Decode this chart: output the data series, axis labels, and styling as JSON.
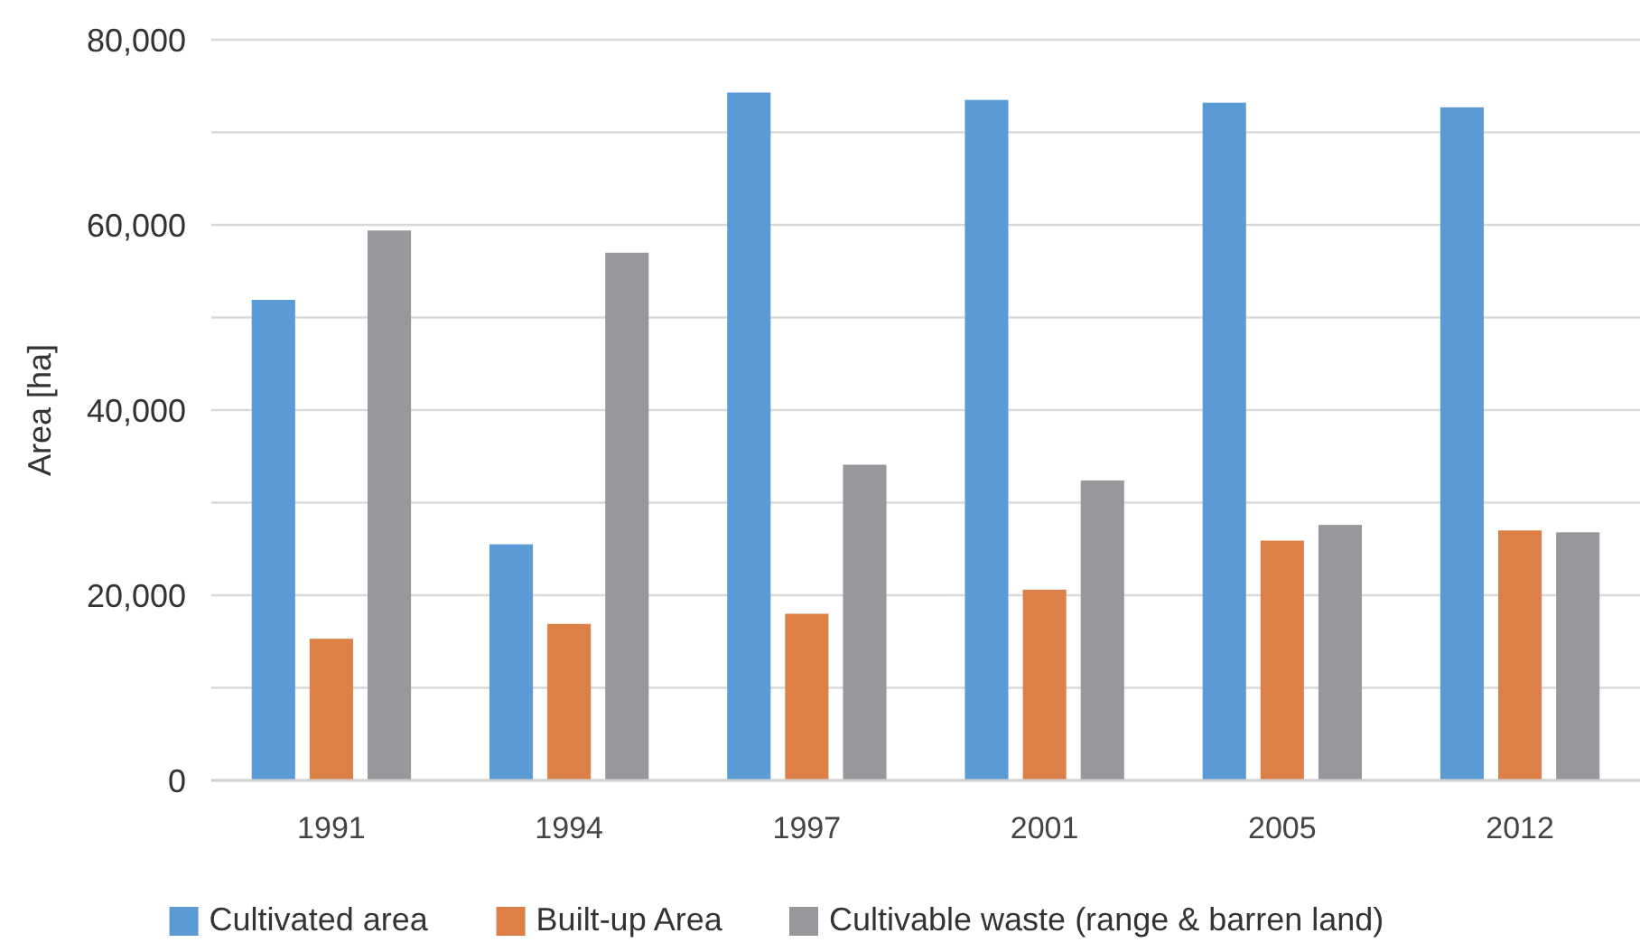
{
  "chart_data": {
    "type": "bar",
    "ylabel": "Area [ha]",
    "categories": [
      "1991",
      "1994",
      "1997",
      "2001",
      "2005",
      "2012"
    ],
    "series": [
      {
        "name": "Cultivated area",
        "color": "#5b9bd5",
        "values": [
          51900,
          25500,
          74300,
          73500,
          73200,
          72700
        ]
      },
      {
        "name": "Built-up Area",
        "color": "#dd8047",
        "values": [
          15300,
          16900,
          18000,
          20600,
          25900,
          27000
        ]
      },
      {
        "name": "Cultivable waste (range & barren land)",
        "color": "#97989c",
        "values": [
          59400,
          57000,
          34100,
          32400,
          27600,
          26800
        ]
      }
    ],
    "ylim": [
      0,
      80000
    ],
    "yticks": [
      {
        "value": 0,
        "label": "0"
      },
      {
        "value": 10000,
        "label": null
      },
      {
        "value": 20000,
        "label": "20,000"
      },
      {
        "value": 30000,
        "label": null
      },
      {
        "value": 40000,
        "label": "40,000"
      },
      {
        "value": 50000,
        "label": null
      },
      {
        "value": 60000,
        "label": "60,000"
      },
      {
        "value": 70000,
        "label": null
      },
      {
        "value": 80000,
        "label": "80,000"
      }
    ],
    "grid": "y",
    "legend": "bottom"
  }
}
